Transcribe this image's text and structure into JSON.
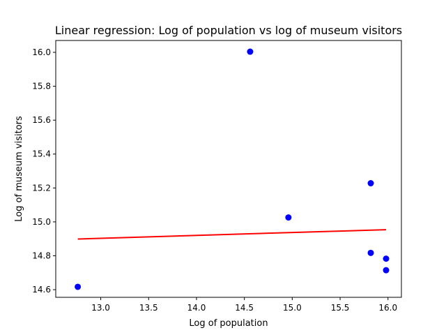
{
  "chart_data": {
    "type": "scatter",
    "title": "Linear regression: Log of population vs log of museum visitors",
    "xlabel": "Log of population",
    "ylabel": "Log of museum visitors",
    "xlim": [
      12.53,
      16.14
    ],
    "ylim": [
      14.555,
      16.07
    ],
    "xticks": [
      "13.0",
      "13.5",
      "14.0",
      "14.5",
      "15.0",
      "15.5",
      "16.0"
    ],
    "yticks": [
      "14.6",
      "14.8",
      "15.0",
      "15.2",
      "15.4",
      "15.6",
      "15.8",
      "16.0"
    ],
    "grid": false,
    "series": [
      {
        "kind": "points",
        "color": "#0000ff",
        "x": [
          12.76,
          14.56,
          14.96,
          15.82,
          15.82,
          15.98,
          15.98
        ],
        "y": [
          14.617,
          16.004,
          15.026,
          15.228,
          14.817,
          14.783,
          14.715
        ]
      },
      {
        "kind": "line",
        "color": "#ff0000",
        "x": [
          12.76,
          15.98
        ],
        "y": [
          14.899,
          14.954
        ]
      }
    ]
  }
}
